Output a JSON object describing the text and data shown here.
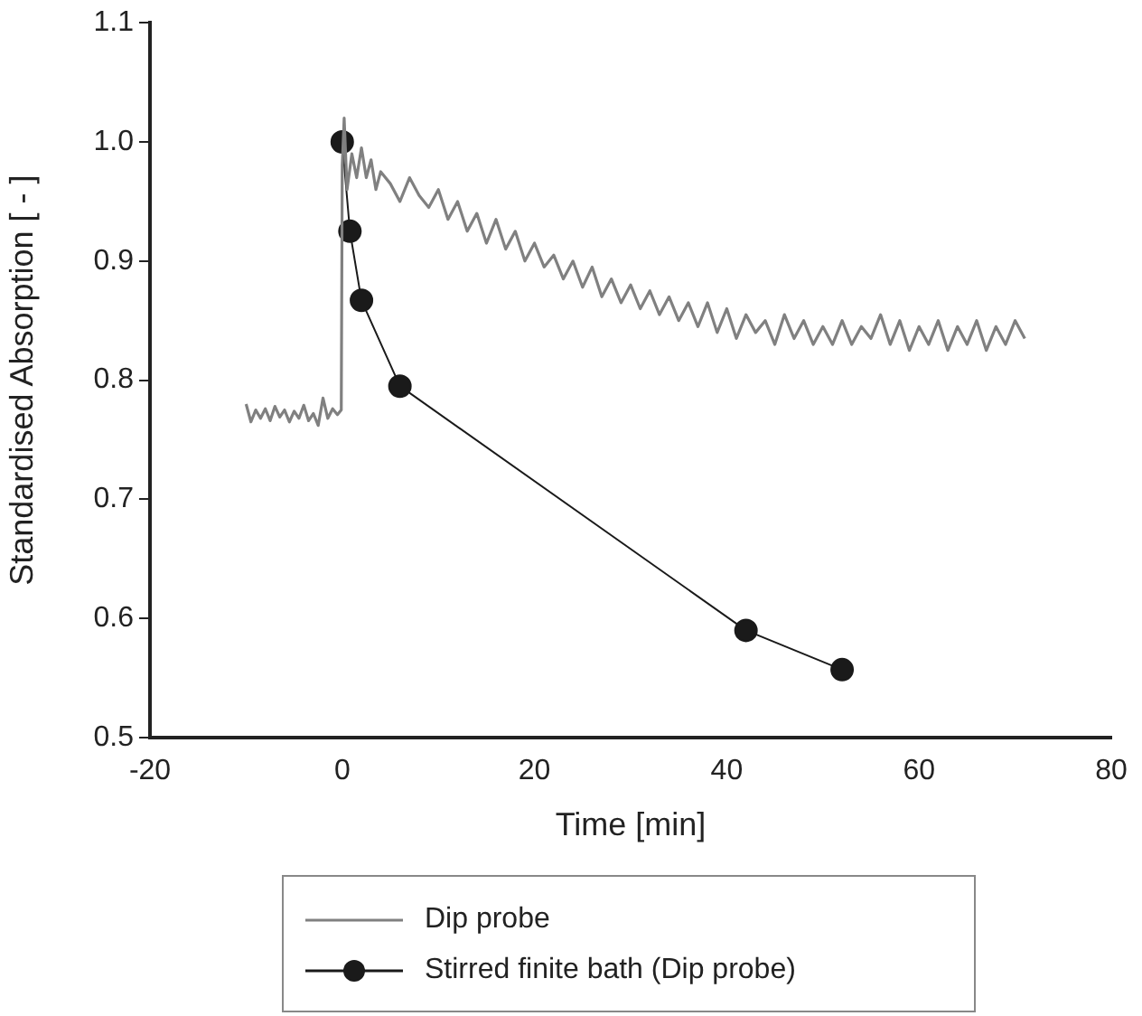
{
  "chart_data": {
    "type": "line",
    "xlabel": "Time [min]",
    "ylabel": "Standardised Absorption [ - ]",
    "xlim": [
      -20,
      80
    ],
    "xticks": [
      -20,
      0,
      20,
      40,
      60,
      80
    ],
    "ylim": [
      0.5,
      1.1
    ],
    "yticks": [
      0.5,
      0.6,
      0.7,
      0.8,
      0.9,
      {
        "value": 1.0,
        "label": "1.0"
      },
      1.1
    ],
    "grid": false,
    "legend": "bottom",
    "series": [
      {
        "name": "Dip probe",
        "color": "#808080",
        "marker": "none",
        "x": [
          -10,
          -9.5,
          -9,
          -8.5,
          -8,
          -7.5,
          -7,
          -6.5,
          -6,
          -5.5,
          -5,
          -4.5,
          -4,
          -3.5,
          -3,
          -2.5,
          -2,
          -1.5,
          -1,
          -0.5,
          -0.1,
          0,
          0.2,
          0.5,
          1,
          1.5,
          2,
          2.5,
          3,
          3.5,
          4,
          5,
          6,
          7,
          8,
          9,
          10,
          11,
          12,
          13,
          14,
          15,
          16,
          17,
          18,
          19,
          20,
          21,
          22,
          23,
          24,
          25,
          26,
          27,
          28,
          29,
          30,
          31,
          32,
          33,
          34,
          35,
          36,
          37,
          38,
          39,
          40,
          41,
          42,
          43,
          44,
          45,
          46,
          47,
          48,
          49,
          50,
          51,
          52,
          53,
          54,
          55,
          56,
          57,
          58,
          59,
          60,
          61,
          62,
          63,
          64,
          65,
          66,
          67,
          68,
          69,
          70,
          71
        ],
        "values": [
          0.78,
          0.765,
          0.775,
          0.768,
          0.776,
          0.766,
          0.778,
          0.769,
          0.775,
          0.765,
          0.774,
          0.768,
          0.779,
          0.766,
          0.772,
          0.762,
          0.785,
          0.768,
          0.776,
          0.771,
          0.775,
          0.98,
          1.02,
          0.96,
          0.99,
          0.97,
          0.995,
          0.97,
          0.985,
          0.96,
          0.975,
          0.965,
          0.95,
          0.97,
          0.955,
          0.945,
          0.96,
          0.935,
          0.95,
          0.925,
          0.94,
          0.915,
          0.935,
          0.91,
          0.925,
          0.9,
          0.915,
          0.895,
          0.905,
          0.885,
          0.9,
          0.878,
          0.895,
          0.87,
          0.885,
          0.865,
          0.88,
          0.86,
          0.875,
          0.855,
          0.87,
          0.85,
          0.865,
          0.845,
          0.865,
          0.84,
          0.86,
          0.835,
          0.855,
          0.84,
          0.85,
          0.83,
          0.855,
          0.835,
          0.85,
          0.83,
          0.845,
          0.83,
          0.85,
          0.83,
          0.845,
          0.835,
          0.855,
          0.83,
          0.85,
          0.825,
          0.845,
          0.83,
          0.85,
          0.825,
          0.845,
          0.83,
          0.85,
          0.825,
          0.845,
          0.83,
          0.85,
          0.835
        ]
      },
      {
        "name": "Stirred finite bath (Dip probe)",
        "color": "#1a1a1a",
        "marker": "circle",
        "x": [
          0,
          0.8,
          2,
          6,
          42,
          52
        ],
        "values": [
          1.0,
          0.925,
          0.867,
          0.795,
          0.59,
          0.557
        ]
      }
    ]
  }
}
